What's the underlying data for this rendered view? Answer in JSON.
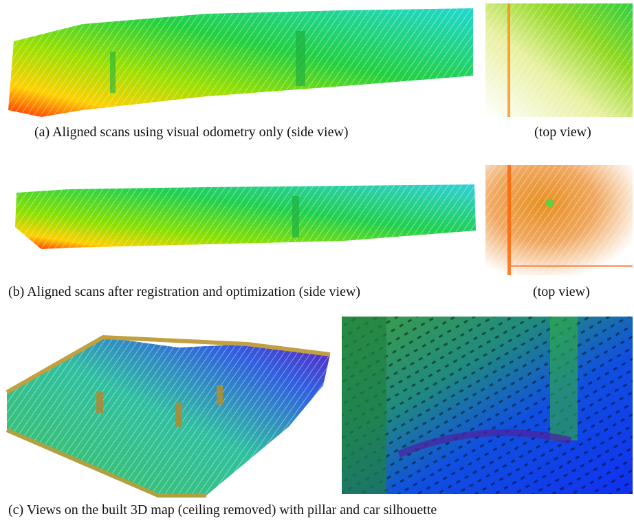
{
  "figure": {
    "a": {
      "side_caption": "(a) Aligned scans using visual odometry only (side view)",
      "top_caption": "(top view)"
    },
    "b": {
      "side_caption": "(b) Aligned scans after registration and optimization (side view)",
      "top_caption": "(top view)"
    },
    "c": {
      "caption": "(c) Views on the built 3D map (ceiling removed) with pillar and car silhouette"
    }
  }
}
